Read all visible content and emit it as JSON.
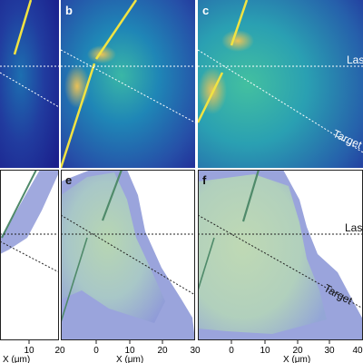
{
  "figure": {
    "top_row": {
      "panels": [
        {
          "label": "",
          "annotations": []
        },
        {
          "label": "b",
          "annotations": []
        },
        {
          "label": "c",
          "annotations": [
            "Las",
            "Target"
          ]
        }
      ]
    },
    "bottom_row": {
      "panels": [
        {
          "label": "",
          "annotations": [],
          "x_ticks": [
            "10",
            "20"
          ]
        },
        {
          "label": "e",
          "annotations": [],
          "x_ticks": [
            "0",
            "10",
            "20",
            "30"
          ]
        },
        {
          "label": "f",
          "annotations": [
            "Las",
            "Target"
          ],
          "x_ticks": [
            "0",
            "10",
            "20",
            "30",
            "40"
          ]
        }
      ],
      "x_axis_label": "X (μm)"
    },
    "colors": {
      "field_dark": "#20289a",
      "field_mid": "#1f7fb0",
      "field_bright": "#3fc0a0",
      "laser_yellow": "#f1e342",
      "density_blue": "#8f9ad8",
      "density_green": "#b6d7ae"
    }
  }
}
